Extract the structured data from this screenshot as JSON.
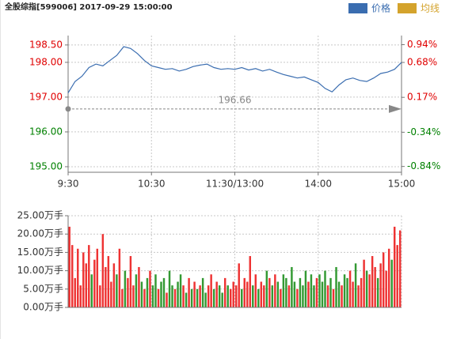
{
  "chart_data": [
    {
      "type": "line",
      "title": "全股综指[599006] 2017-09-29 15:00:00",
      "legend": [
        {
          "name": "价格",
          "color": "#3a6db0"
        },
        {
          "name": "均线",
          "color": "#d4a32c"
        }
      ],
      "x": [
        0,
        5,
        10,
        15,
        20,
        25,
        30,
        35,
        40,
        45,
        50,
        55,
        60,
        65,
        70,
        75,
        80,
        85,
        90,
        95,
        100,
        105,
        110,
        115,
        120,
        125,
        130,
        135,
        140,
        145,
        150,
        155,
        160,
        165,
        170,
        175,
        180,
        185,
        190,
        195,
        200,
        205,
        210,
        215,
        220,
        225,
        230,
        235,
        240
      ],
      "xlim": [
        0,
        240
      ],
      "xticks": [
        {
          "value": 0,
          "label": "9:30"
        },
        {
          "value": 60,
          "label": "10:30"
        },
        {
          "value": 120,
          "label": "11:30/13:00"
        },
        {
          "value": 180,
          "label": "14:00"
        },
        {
          "value": 240,
          "label": "15:00"
        }
      ],
      "series": [
        {
          "color": "#3a6db0",
          "values": [
            197.12,
            197.45,
            197.6,
            197.85,
            197.95,
            197.9,
            198.05,
            198.2,
            198.45,
            198.4,
            198.25,
            198.05,
            197.9,
            197.85,
            197.8,
            197.82,
            197.75,
            197.8,
            197.88,
            197.92,
            197.95,
            197.85,
            197.8,
            197.82,
            197.8,
            197.85,
            197.78,
            197.82,
            197.75,
            197.8,
            197.72,
            197.65,
            197.6,
            197.55,
            197.58,
            197.5,
            197.42,
            197.25,
            197.15,
            197.35,
            197.5,
            197.55,
            197.48,
            197.45,
            197.55,
            197.68,
            197.72,
            197.8,
            198.0
          ]
        }
      ],
      "ylim": [
        194.84,
        198.77
      ],
      "yticks": [
        {
          "value": 198.5,
          "label": "198.50"
        },
        {
          "value": 198,
          "label": "198.00"
        },
        {
          "value": 197,
          "label": "197.00"
        },
        {
          "value": 196,
          "label": "196.00"
        },
        {
          "value": 195,
          "label": "195.00"
        }
      ],
      "y2lim": [
        -0.925,
        1.073
      ],
      "y2ticks": [
        {
          "value": 0.94,
          "label": "0.94%"
        },
        {
          "value": 0.68,
          "label": "0.68%"
        },
        {
          "value": 0.17,
          "label": "0.17%"
        },
        {
          "value": -0.34,
          "label": "-0.34%"
        },
        {
          "value": -0.84,
          "label": "-0.84%"
        }
      ],
      "prev_close": 196.66,
      "up_color": "#e00000",
      "down_color": "#008000",
      "grid": true
    },
    {
      "type": "bar",
      "ylim": [
        0,
        25
      ],
      "yticks": [
        {
          "value": 25,
          "label": "25.00万手"
        },
        {
          "value": 20,
          "label": "20.00万手"
        },
        {
          "value": 15,
          "label": "15.00万手"
        },
        {
          "value": 10,
          "label": "10.00万手"
        },
        {
          "value": 5,
          "label": "5.00万手"
        },
        {
          "value": 0,
          "label": "0.00万手"
        }
      ],
      "values": [
        22,
        17,
        8,
        16,
        6,
        15,
        12,
        17,
        9,
        13,
        16,
        6,
        20,
        11,
        14,
        7,
        12,
        9,
        16,
        5,
        10,
        8,
        14,
        6,
        9,
        11,
        7,
        5,
        8,
        10,
        6,
        9,
        5,
        7,
        8,
        4,
        10,
        6,
        5,
        7,
        9,
        6,
        4,
        8,
        5,
        7,
        5,
        6,
        8,
        4,
        6,
        9,
        5,
        7,
        6,
        4,
        8,
        6,
        5,
        7,
        6,
        12,
        5,
        8,
        7,
        14,
        6,
        9,
        5,
        7,
        6,
        10,
        8,
        6,
        9,
        7,
        5,
        9,
        8,
        6,
        11,
        7,
        5,
        8,
        6,
        10,
        7,
        9,
        6,
        8,
        9,
        7,
        10,
        6,
        8,
        5,
        11,
        7,
        6,
        9,
        8,
        10,
        7,
        12,
        6,
        8,
        13,
        10,
        9,
        14,
        11,
        8,
        12,
        15,
        10,
        16,
        13,
        22,
        17,
        21
      ],
      "colors": [
        "#e33",
        "#e33",
        "#e33",
        "#e33",
        "#e33",
        "#e33",
        "#e33",
        "#e33",
        "#393",
        "#e33",
        "#e33",
        "#e33",
        "#e33",
        "#e33",
        "#e33",
        "#e33",
        "#e33",
        "#393",
        "#e33",
        "#e33",
        "#393",
        "#e33",
        "#e33",
        "#e33",
        "#393",
        "#e33",
        "#393",
        "#e33",
        "#393",
        "#e33",
        "#393",
        "#393",
        "#e33",
        "#393",
        "#393",
        "#e33",
        "#393",
        "#393",
        "#e33",
        "#393",
        "#393",
        "#e33",
        "#393",
        "#e33",
        "#393",
        "#e33",
        "#393",
        "#e33",
        "#393",
        "#393",
        "#e33",
        "#e33",
        "#393",
        "#e33",
        "#393",
        "#393",
        "#e33",
        "#393",
        "#e33",
        "#e33",
        "#e33",
        "#e33",
        "#393",
        "#e33",
        "#e33",
        "#e33",
        "#393",
        "#e33",
        "#393",
        "#e33",
        "#e33",
        "#393",
        "#e33",
        "#393",
        "#e33",
        "#393",
        "#e33",
        "#393",
        "#393",
        "#e33",
        "#393",
        "#393",
        "#e33",
        "#393",
        "#393",
        "#393",
        "#e33",
        "#393",
        "#393",
        "#e33",
        "#393",
        "#393",
        "#393",
        "#e33",
        "#393",
        "#e33",
        "#393",
        "#393",
        "#e33",
        "#393",
        "#393",
        "#e33",
        "#e33",
        "#393",
        "#e33",
        "#e33",
        "#e33",
        "#393",
        "#e33",
        "#e33",
        "#e33",
        "#393",
        "#e33",
        "#e33",
        "#e33",
        "#e33",
        "#393",
        "#e33",
        "#e33",
        "#e33"
      ],
      "grid": true
    }
  ]
}
